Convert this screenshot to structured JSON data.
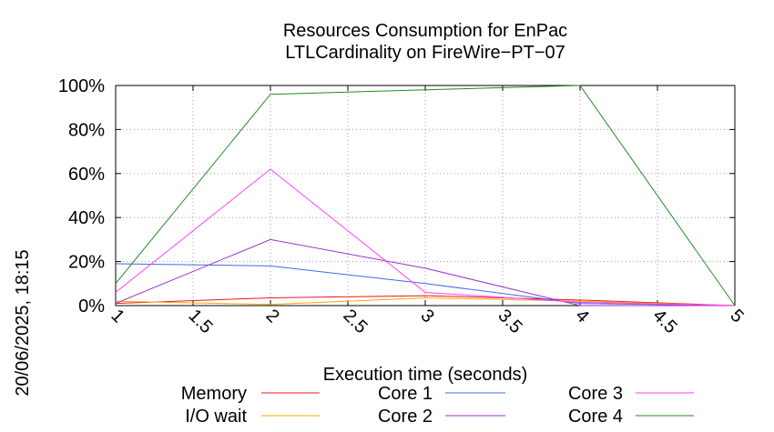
{
  "chart_data": {
    "type": "line",
    "title": [
      "Resources Consumption for EnPac",
      "LTLCardinality on FireWire−PT−07"
    ],
    "xlabel": "Execution time (seconds)",
    "ylabel": "",
    "side_label": "20/06/2025, 18:15",
    "x": [
      1,
      2,
      3,
      4,
      5
    ],
    "xlim": [
      1,
      5
    ],
    "ylim": [
      0,
      100
    ],
    "x_ticks": [
      1,
      1.5,
      2,
      2.5,
      3,
      3.5,
      4,
      4.5,
      5
    ],
    "x_tick_labels": [
      "1",
      "1.5",
      "2",
      "2.5",
      "3",
      "3.5",
      "4",
      "4.5",
      "5"
    ],
    "y_ticks": [
      0,
      20,
      40,
      60,
      80,
      100
    ],
    "y_tick_labels": [
      "0%",
      "20%",
      "40%",
      "60%",
      "80%",
      "100%"
    ],
    "grid": true,
    "legend_position": "bottom",
    "series": [
      {
        "name": "Memory",
        "color": "#e41a1c",
        "values": [
          1,
          3.5,
          4.5,
          2.5,
          0
        ]
      },
      {
        "name": "I/O wait",
        "color": "#ffa500",
        "values": [
          2,
          0.5,
          3.5,
          2,
          0
        ]
      },
      {
        "name": "Core 1",
        "color": "#4169e1",
        "values": [
          19,
          18,
          10,
          1,
          0
        ]
      },
      {
        "name": "Core 2",
        "color": "#9932cc",
        "values": [
          1,
          30,
          17,
          0,
          0
        ]
      },
      {
        "name": "Core 3",
        "color": "#ff40ff",
        "values": [
          6,
          62,
          6,
          1.5,
          0
        ]
      },
      {
        "name": "Core 4",
        "color": "#228b22",
        "values": [
          10,
          96,
          98,
          100,
          0
        ]
      }
    ]
  }
}
